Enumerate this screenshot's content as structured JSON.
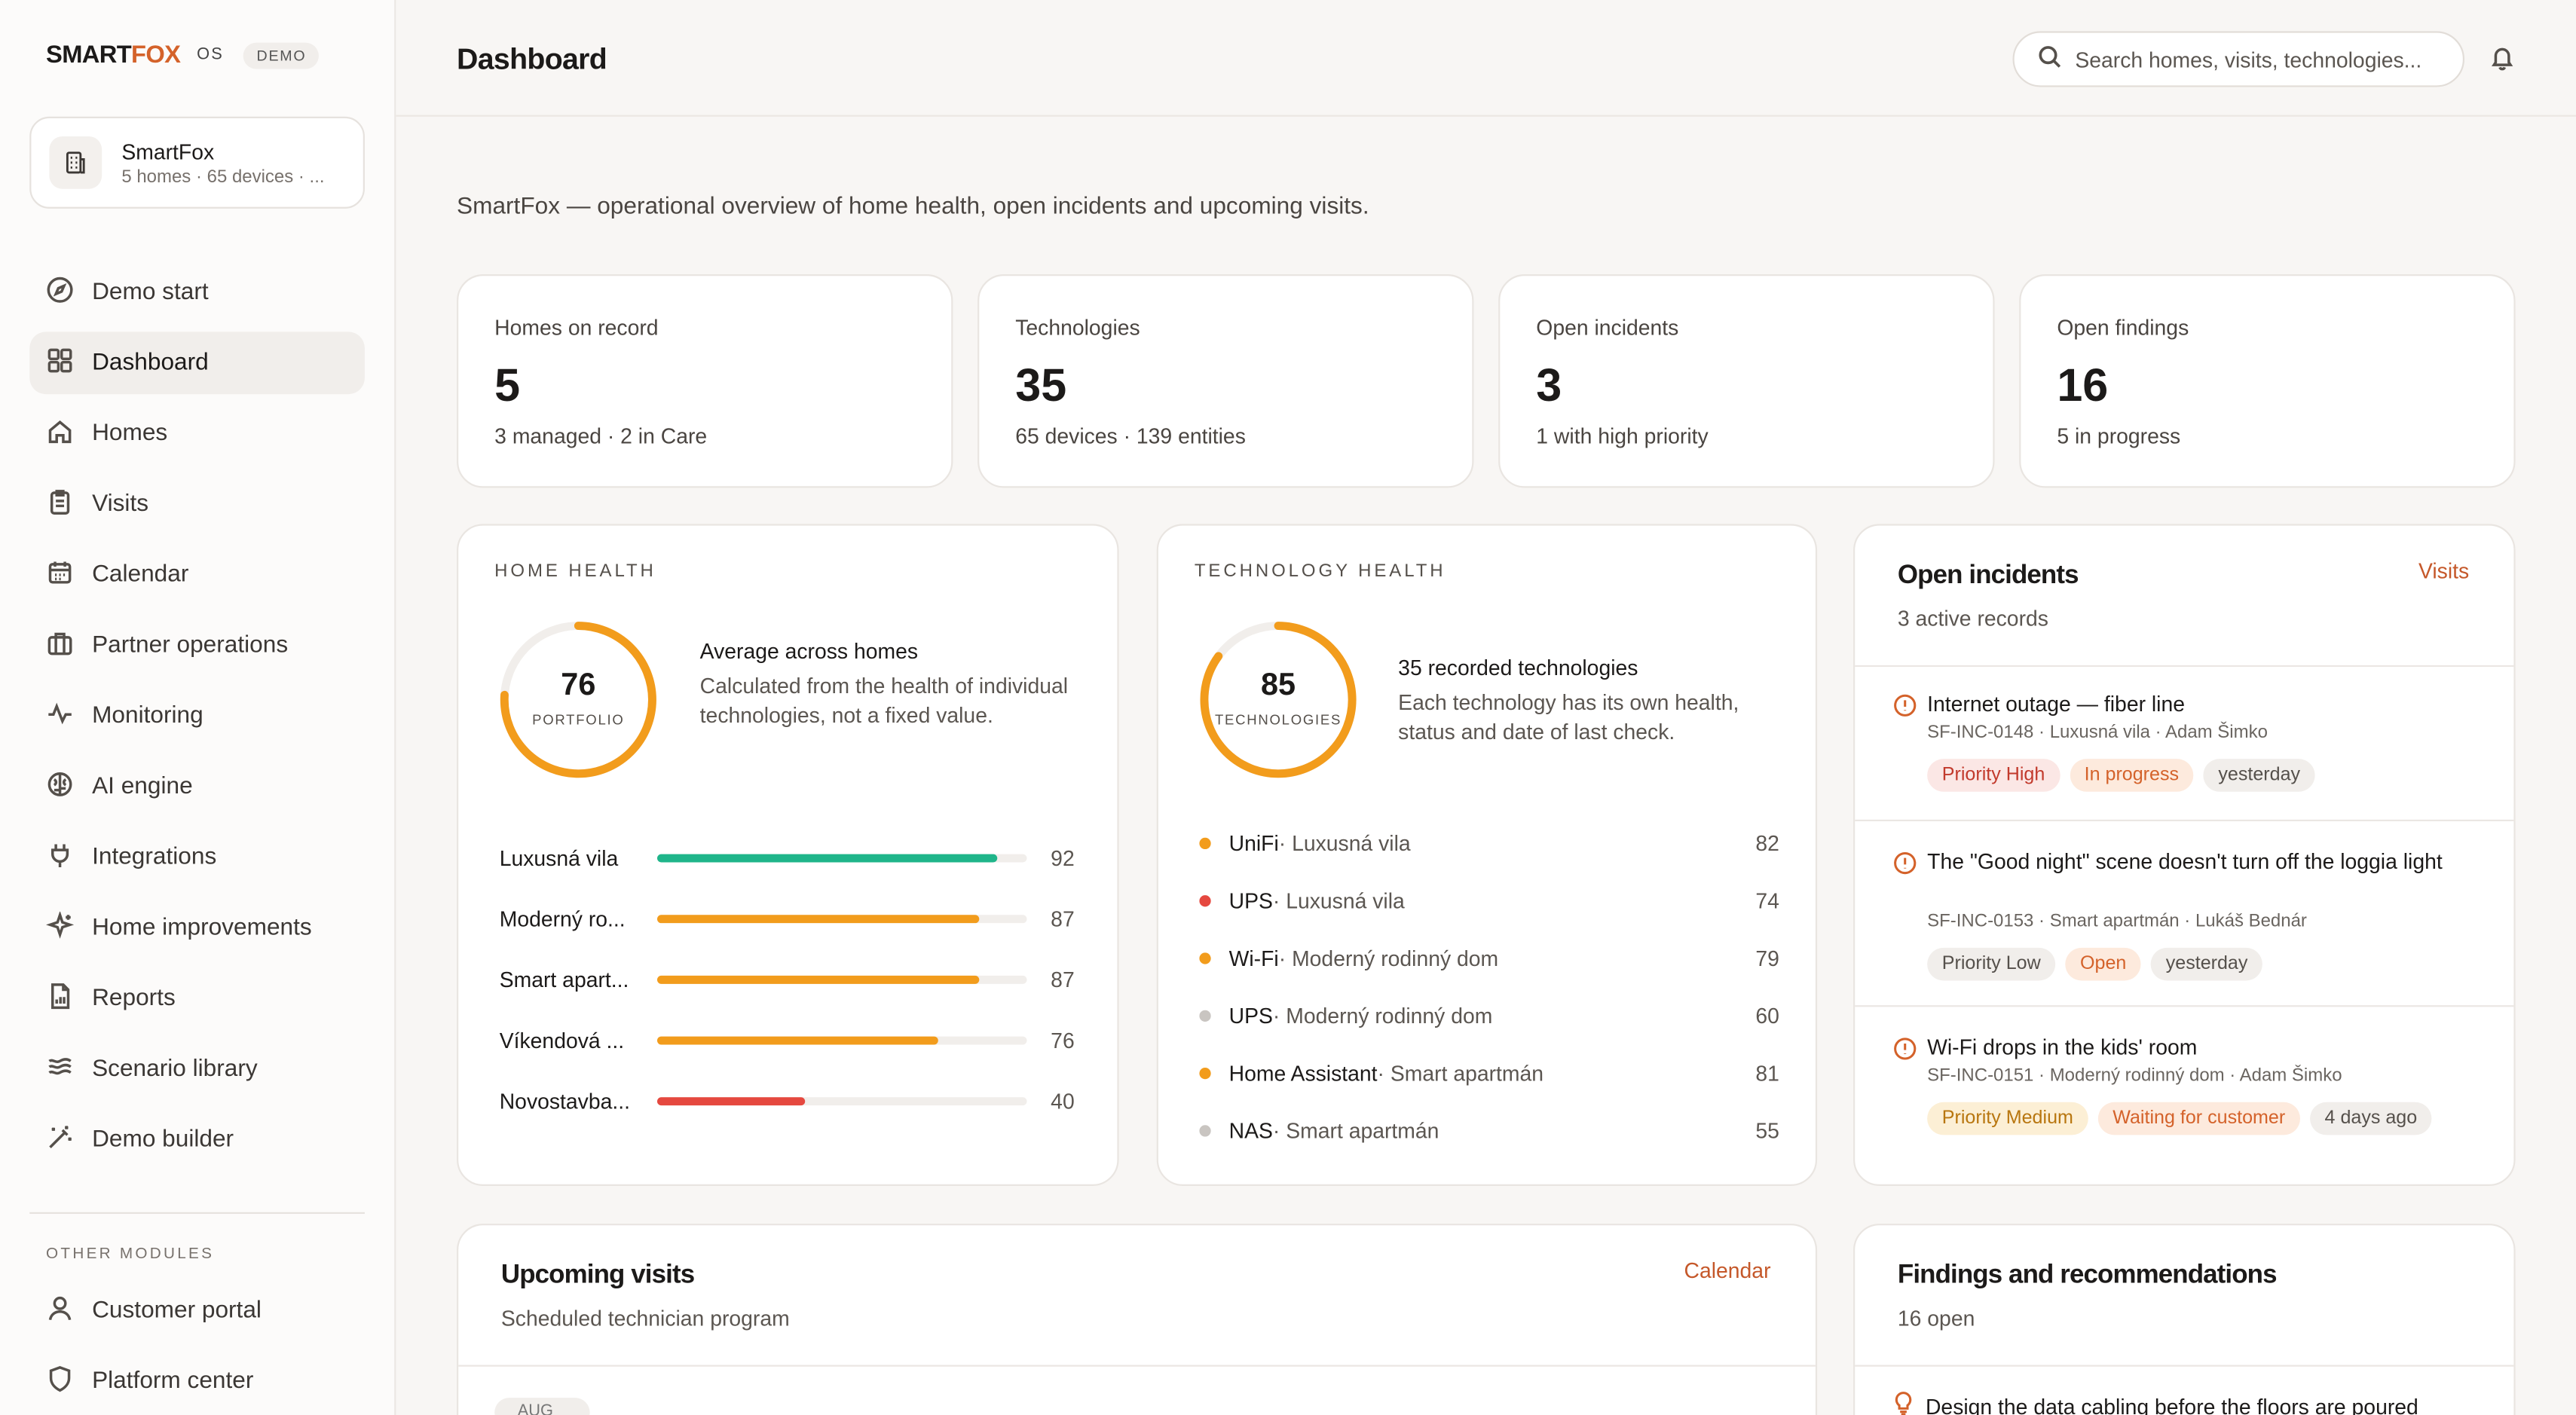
{
  "brand": {
    "smart": "SMART",
    "fox": "FOX",
    "os": "OS",
    "badge": "DEMO"
  },
  "tenant": {
    "name": "SmartFox",
    "meta": "5 homes · 65 devices · ..."
  },
  "nav": [
    {
      "label": "Demo start",
      "icon": "compass-icon"
    },
    {
      "label": "Dashboard",
      "icon": "grid-icon",
      "active": true
    },
    {
      "label": "Homes",
      "icon": "home-icon"
    },
    {
      "label": "Visits",
      "icon": "clipboard-icon"
    },
    {
      "label": "Calendar",
      "icon": "calendar-icon"
    },
    {
      "label": "Partner operations",
      "icon": "briefcase-icon"
    },
    {
      "label": "Monitoring",
      "icon": "activity-icon"
    },
    {
      "label": "AI engine",
      "icon": "brain-icon"
    },
    {
      "label": "Integrations",
      "icon": "plug-icon"
    },
    {
      "label": "Home improvements",
      "icon": "sparkle-icon"
    },
    {
      "label": "Reports",
      "icon": "report-icon"
    },
    {
      "label": "Scenario library",
      "icon": "layers-icon"
    },
    {
      "label": "Demo builder",
      "icon": "wand-icon"
    }
  ],
  "other_modules": {
    "label": "OTHER MODULES",
    "items": [
      {
        "label": "Customer portal",
        "icon": "user-icon"
      },
      {
        "label": "Platform center",
        "icon": "shield-icon"
      }
    ]
  },
  "header": {
    "title": "Dashboard",
    "search_placeholder": "Search homes, visits, technologies..."
  },
  "subtitle": "SmartFox — operational overview of home health, open incidents and upcoming visits.",
  "kpis": [
    {
      "label": "Homes on record",
      "value": "5",
      "note": "3 managed · 2 in Care"
    },
    {
      "label": "Technologies",
      "value": "35",
      "note": "65 devices · 139 entities"
    },
    {
      "label": "Open incidents",
      "value": "3",
      "note": "1 with high priority"
    },
    {
      "label": "Open findings",
      "value": "16",
      "note": "5 in progress"
    }
  ],
  "home_health": {
    "section": "HOME HEALTH",
    "score": "76",
    "score_value": 76,
    "caption": "PORTFOLIO",
    "title": "Average across homes",
    "desc": "Calculated from the health of individual technologies, not a fixed value.",
    "homes": [
      {
        "name": "Luxusná vila",
        "value": 92,
        "value_label": "92",
        "color": "#1fb58a"
      },
      {
        "name": "Moderný ro...",
        "value": 87,
        "value_label": "87",
        "color": "#f29c1c"
      },
      {
        "name": "Smart apart...",
        "value": 87,
        "value_label": "87",
        "color": "#f29c1c"
      },
      {
        "name": "Víkendová ...",
        "value": 76,
        "value_label": "76",
        "color": "#f29c1c"
      },
      {
        "name": "Novostavba...",
        "value": 40,
        "value_label": "40",
        "color": "#e5483f"
      }
    ]
  },
  "tech_health": {
    "section": "TECHNOLOGY HEALTH",
    "score": "85",
    "score_value": 85,
    "caption": "TECHNOLOGIES",
    "title": "35 recorded technologies",
    "desc": "Each technology has its own health, status and date of last check.",
    "items": [
      {
        "name": "UniFi",
        "location": " · Luxusná vila",
        "value": "82",
        "color": "#f29c1c"
      },
      {
        "name": "UPS",
        "location": " · Luxusná vila",
        "value": "74",
        "color": "#e5483f"
      },
      {
        "name": "Wi-Fi",
        "location": " · Moderný rodinný dom",
        "value": "79",
        "color": "#f29c1c"
      },
      {
        "name": "UPS",
        "location": " · Moderný rodinný dom",
        "value": "60",
        "color": "#c9c5c1"
      },
      {
        "name": "Home Assistant",
        "location": " · Smart apartmán",
        "value": "81",
        "color": "#f29c1c"
      },
      {
        "name": "NAS",
        "location": " · Smart apartmán",
        "value": "55",
        "color": "#c9c5c1"
      }
    ]
  },
  "incidents": {
    "title": "Open incidents",
    "sub": "3 active records",
    "link": "Visits",
    "items": [
      {
        "title": "Internet outage — fiber line",
        "meta": "SF-INC-0148 · Luxusná vila · Adam Šimko",
        "tags": [
          {
            "text": "Priority High",
            "tone": "red"
          },
          {
            "text": "In progress",
            "tone": "orange"
          },
          {
            "text": "yesterday",
            "tone": "grey"
          }
        ]
      },
      {
        "title": "The \"Good night\" scene doesn't turn off the loggia light",
        "meta": "SF-INC-0153 · Smart apartmán · Lukáš Bednár",
        "tags": [
          {
            "text": "Priority Low",
            "tone": "grey"
          },
          {
            "text": "Open",
            "tone": "orange"
          },
          {
            "text": "yesterday",
            "tone": "grey"
          }
        ]
      },
      {
        "title": "Wi-Fi drops in the kids' room",
        "meta": "SF-INC-0151 · Moderný rodinný dom · Adam Šimko",
        "tags": [
          {
            "text": "Priority Medium",
            "tone": "amber"
          },
          {
            "text": "Waiting for customer",
            "tone": "orange"
          },
          {
            "text": "4 days ago",
            "tone": "grey"
          }
        ]
      }
    ]
  },
  "visits": {
    "title": "Upcoming visits",
    "sub": "Scheduled technician program",
    "link": "Calendar",
    "peek": "AUG"
  },
  "findings": {
    "title": "Findings and recommendations",
    "sub": "16 open",
    "first": "Design the data cabling before the floors are poured"
  },
  "colors": {
    "accent": "#d4622a",
    "ring": "#f29c1c",
    "ring_track": "#f1eeeb"
  }
}
